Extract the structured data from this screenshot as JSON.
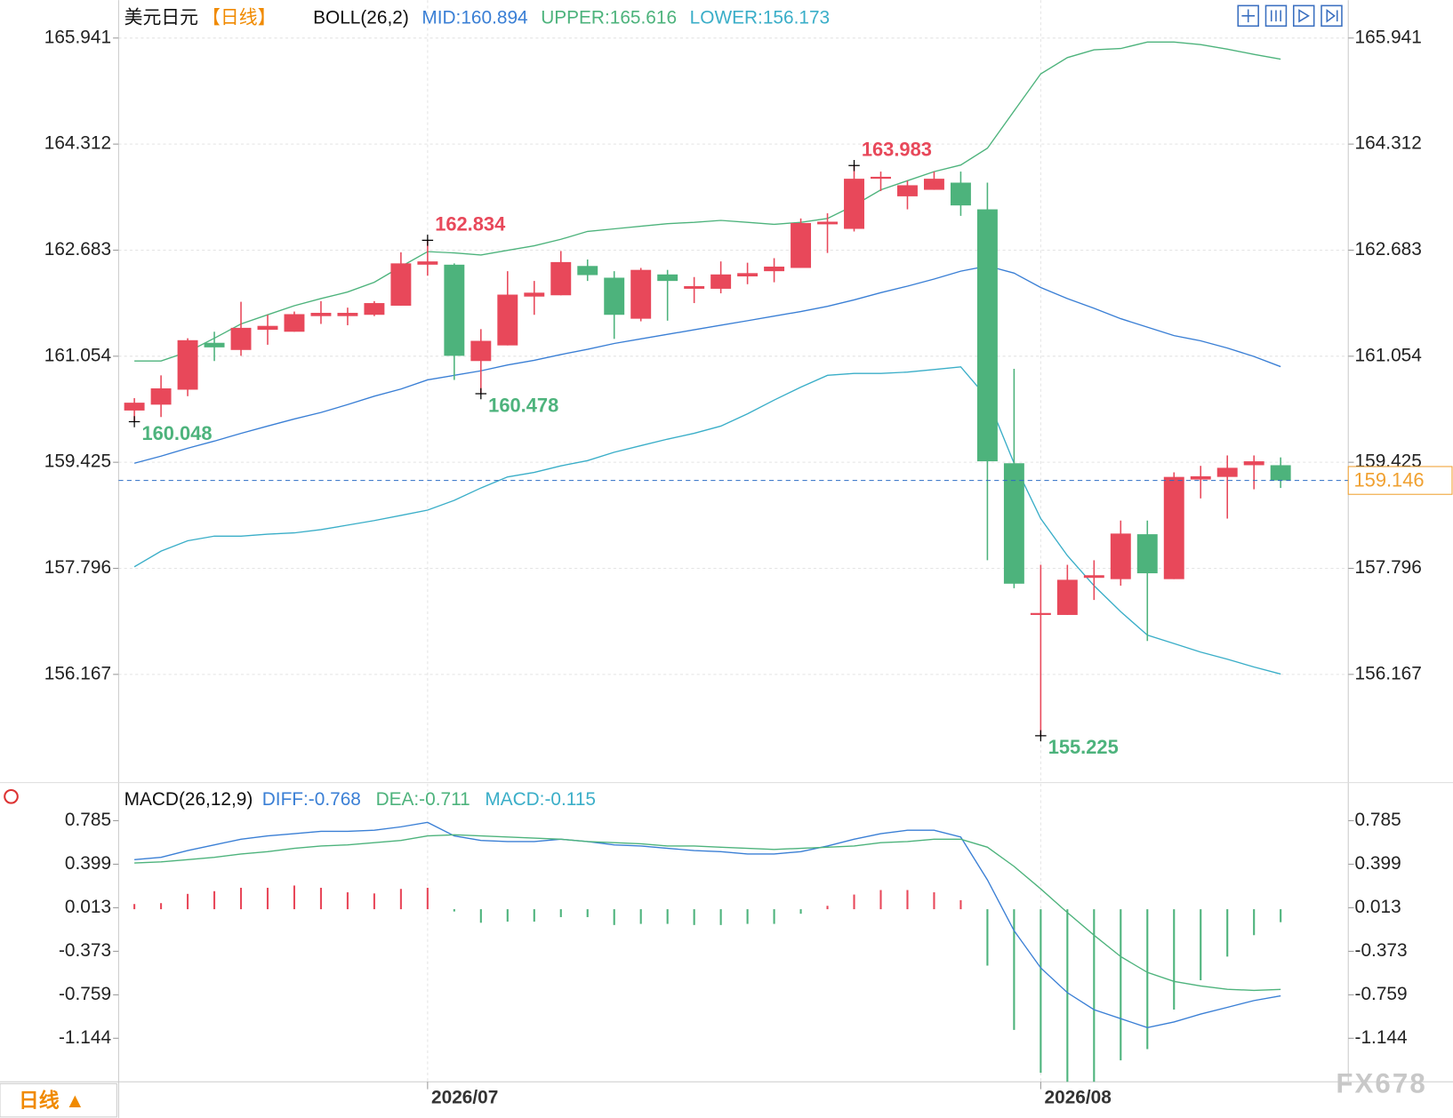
{
  "chart_data": [
    {
      "type": "candlestick",
      "title": "美元日元",
      "period": "【日线】",
      "indicator": "BOLL(26,2)",
      "categories": [
        null,
        null,
        null,
        null,
        null,
        null,
        null,
        null,
        null,
        null,
        null,
        "2026/07",
        null,
        null,
        null,
        null,
        null,
        null,
        null,
        null,
        null,
        null,
        null,
        null,
        null,
        null,
        null,
        null,
        null,
        null,
        null,
        null,
        null,
        null,
        "2026/08",
        null,
        null,
        null,
        null,
        null,
        null,
        null,
        null,
        null
      ],
      "open": [
        160.22,
        160.31,
        160.54,
        161.26,
        161.15,
        161.46,
        161.43,
        161.67,
        161.67,
        161.69,
        161.83,
        162.46,
        162.46,
        160.98,
        161.22,
        161.97,
        161.99,
        162.44,
        162.26,
        161.63,
        162.31,
        162.09,
        162.09,
        162.28,
        162.36,
        162.41,
        163.08,
        163.01,
        163.78,
        163.51,
        163.61,
        163.72,
        163.31,
        159.41,
        157.08,
        157.08,
        157.65,
        157.63,
        158.32,
        157.63,
        159.16,
        159.2,
        159.38,
        159.38
      ],
      "high": [
        160.41,
        160.76,
        161.33,
        161.43,
        161.89,
        161.69,
        161.74,
        161.9,
        161.8,
        161.9,
        162.65,
        162.834,
        162.48,
        161.47,
        162.36,
        162.21,
        162.67,
        162.54,
        162.36,
        162.41,
        162.38,
        162.27,
        162.51,
        162.49,
        162.56,
        163.17,
        163.25,
        163.983,
        163.89,
        163.75,
        163.89,
        163.89,
        163.72,
        160.86,
        157.85,
        157.85,
        157.92,
        158.53,
        158.53,
        159.27,
        159.37,
        159.53,
        159.53,
        159.5
      ],
      "low": [
        160.048,
        160.12,
        160.44,
        160.98,
        161.06,
        161.23,
        161.43,
        161.55,
        161.53,
        161.67,
        161.83,
        162.29,
        160.69,
        160.478,
        161.22,
        161.69,
        161.99,
        162.21,
        161.32,
        161.59,
        161.6,
        161.87,
        162.02,
        162.16,
        162.19,
        162.41,
        162.64,
        162.97,
        163.59,
        163.31,
        163.61,
        163.21,
        157.92,
        157.49,
        155.225,
        157.08,
        157.31,
        157.53,
        156.68,
        157.63,
        158.87,
        158.56,
        159.01,
        159.03
      ],
      "close": [
        160.34,
        160.56,
        161.3,
        161.19,
        161.49,
        161.52,
        161.7,
        161.72,
        161.72,
        161.87,
        162.48,
        162.51,
        161.06,
        161.29,
        162.0,
        162.03,
        162.5,
        162.3,
        161.69,
        162.38,
        162.21,
        162.13,
        162.31,
        162.33,
        162.43,
        163.1,
        163.12,
        163.78,
        163.81,
        163.68,
        163.78,
        163.37,
        159.44,
        157.56,
        157.11,
        157.62,
        157.69,
        158.33,
        157.72,
        159.2,
        159.21,
        159.34,
        159.44,
        159.146
      ],
      "up_color": "#e8485a",
      "down_color": "#4db37c",
      "series": [
        {
          "name": "MID:160.894",
          "color": "#3a7fd5",
          "values": [
            159.41,
            159.52,
            159.64,
            159.75,
            159.87,
            159.98,
            160.09,
            160.19,
            160.31,
            160.44,
            160.55,
            160.69,
            160.76,
            160.83,
            160.92,
            160.99,
            161.08,
            161.16,
            161.25,
            161.32,
            161.39,
            161.46,
            161.53,
            161.6,
            161.67,
            161.74,
            161.82,
            161.92,
            162.03,
            162.13,
            162.24,
            162.36,
            162.44,
            162.33,
            162.11,
            161.94,
            161.79,
            161.63,
            161.5,
            161.37,
            161.29,
            161.18,
            161.05,
            160.894
          ]
        },
        {
          "name": "UPPER:165.616",
          "color": "#4db37c",
          "values": [
            160.98,
            160.98,
            161.12,
            161.33,
            161.55,
            161.69,
            161.83,
            161.94,
            162.04,
            162.19,
            162.43,
            162.66,
            162.64,
            162.61,
            162.68,
            162.75,
            162.85,
            162.97,
            163.01,
            163.05,
            163.09,
            163.11,
            163.14,
            163.11,
            163.08,
            163.11,
            163.17,
            163.37,
            163.61,
            163.75,
            163.89,
            163.99,
            164.25,
            164.82,
            165.39,
            165.64,
            165.76,
            165.78,
            165.88,
            165.88,
            165.84,
            165.77,
            165.69,
            165.616
          ]
        },
        {
          "name": "LOWER:156.173",
          "color": "#3aaec8",
          "values": [
            157.82,
            158.06,
            158.22,
            158.29,
            158.29,
            158.32,
            158.34,
            158.39,
            158.46,
            158.53,
            158.61,
            158.69,
            158.84,
            159.03,
            159.2,
            159.27,
            159.37,
            159.45,
            159.58,
            159.68,
            159.78,
            159.87,
            159.98,
            160.17,
            160.38,
            160.58,
            160.76,
            160.79,
            160.79,
            160.81,
            160.85,
            160.89,
            160.41,
            159.41,
            158.56,
            157.99,
            157.53,
            157.13,
            156.77,
            156.64,
            156.51,
            156.4,
            156.28,
            156.173
          ]
        }
      ],
      "ylim": [
        154.504,
        166.524
      ],
      "yticks": [
        156.167,
        157.796,
        159.425,
        161.054,
        162.683,
        164.312,
        165.941
      ],
      "last_price": 159.146,
      "annotations": [
        160.048,
        162.834,
        160.478,
        163.983,
        155.225
      ],
      "grid": true
    },
    {
      "type": "macd",
      "title": "MACD(26,12,9)",
      "series": [
        {
          "name": "DIFF:-0.768",
          "color": "#3a7fd5",
          "values": [
            0.44,
            0.46,
            0.52,
            0.57,
            0.62,
            0.65,
            0.67,
            0.69,
            0.69,
            0.7,
            0.73,
            0.77,
            0.65,
            0.61,
            0.6,
            0.6,
            0.62,
            0.6,
            0.57,
            0.56,
            0.54,
            0.52,
            0.51,
            0.49,
            0.49,
            0.51,
            0.56,
            0.62,
            0.67,
            0.7,
            0.7,
            0.64,
            0.26,
            -0.19,
            -0.52,
            -0.74,
            -0.89,
            -0.97,
            -1.05,
            -1.0,
            -0.93,
            -0.87,
            -0.81,
            -0.768
          ]
        },
        {
          "name": "DEA:-0.711",
          "color": "#4db37c",
          "values": [
            0.41,
            0.42,
            0.44,
            0.46,
            0.49,
            0.51,
            0.54,
            0.56,
            0.57,
            0.59,
            0.61,
            0.65,
            0.66,
            0.65,
            0.64,
            0.63,
            0.62,
            0.6,
            0.59,
            0.58,
            0.56,
            0.56,
            0.55,
            0.54,
            0.53,
            0.54,
            0.55,
            0.56,
            0.59,
            0.6,
            0.62,
            0.62,
            0.55,
            0.38,
            0.18,
            -0.03,
            -0.23,
            -0.42,
            -0.56,
            -0.64,
            -0.68,
            -0.71,
            -0.72,
            -0.711
          ]
        }
      ],
      "histogram": {
        "name": "MACD:-0.115",
        "color": "#3aaec8",
        "values": [
          0.046,
          0.054,
          0.136,
          0.16,
          0.19,
          0.19,
          0.21,
          0.19,
          0.15,
          0.14,
          0.18,
          0.19,
          -0.02,
          -0.12,
          -0.11,
          -0.11,
          -0.07,
          -0.07,
          -0.14,
          -0.13,
          -0.13,
          -0.14,
          -0.14,
          -0.13,
          -0.13,
          -0.04,
          0.03,
          0.13,
          0.17,
          0.17,
          0.15,
          0.08,
          -0.5,
          -1.07,
          -1.45,
          -1.53,
          -1.53,
          -1.34,
          -1.24,
          -0.89,
          -0.63,
          -0.42,
          -0.23,
          -0.115
        ]
      },
      "ylim": [
        -1.53,
        1.122
      ],
      "yticks": [
        -1.144,
        -0.759,
        -0.373,
        0.013,
        0.399,
        0.785
      ]
    }
  ],
  "footer_period": "日线 ▲",
  "watermark": "FX678"
}
